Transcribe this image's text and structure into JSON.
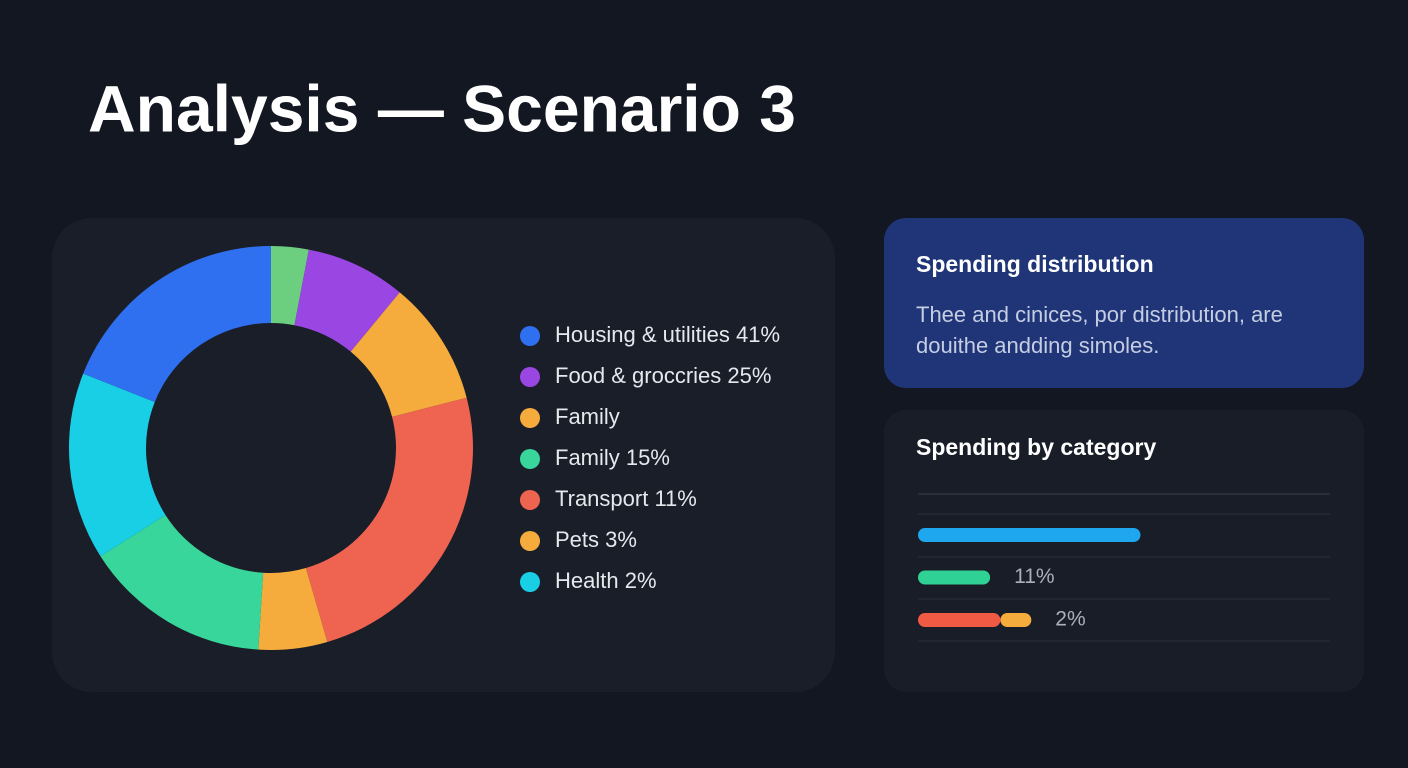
{
  "header": {
    "title": "Analysis — Scenario 3"
  },
  "info_card": {
    "title": "Spending distribution",
    "lines": [
      "Thee and cinices, por distribution, are",
      "douithe andding simoles."
    ]
  },
  "chart_data": [
    {
      "type": "pie",
      "donut": true,
      "values": [
        3,
        8,
        10,
        24.5,
        5.5,
        15,
        15,
        19
      ],
      "colors": [
        "#6ccf7f",
        "#9a46e3",
        "#f5ac3d",
        "#ef6450",
        "#f5ac3d",
        "#38d69a",
        "#19cfe6",
        "#2f70f0"
      ],
      "legend": [
        {
          "label": "Housing & utilities 41%",
          "color": "#2f70f0"
        },
        {
          "label": "Food & groccries 25%",
          "color": "#9a46e3"
        },
        {
          "label": "Family",
          "color": "#f5ac3d"
        },
        {
          "label": "Family 15%",
          "color": "#38d69a"
        },
        {
          "label": "Transport 11%",
          "color": "#ef6450"
        },
        {
          "label": "Pets 3%",
          "color": "#f5ac3d"
        },
        {
          "label": "Health 2%",
          "color": "#19cfe6"
        }
      ]
    },
    {
      "type": "bar",
      "orientation": "horizontal",
      "stacked": true,
      "title": "Spending by category",
      "categories": [
        null,
        null,
        null
      ],
      "row_labels": [
        null,
        "11%",
        "2%"
      ],
      "xlim": [
        0,
        100
      ],
      "series": [
        {
          "color": "#1ea7ef",
          "values": [
            54,
            null,
            null
          ]
        },
        {
          "color": "#2fd294",
          "values": [
            null,
            17.5,
            null
          ]
        },
        {
          "color": "#ef5a45",
          "values": [
            null,
            null,
            20
          ]
        },
        {
          "color": "#f5ac3d",
          "values": [
            null,
            null,
            7.5
          ]
        }
      ]
    }
  ]
}
